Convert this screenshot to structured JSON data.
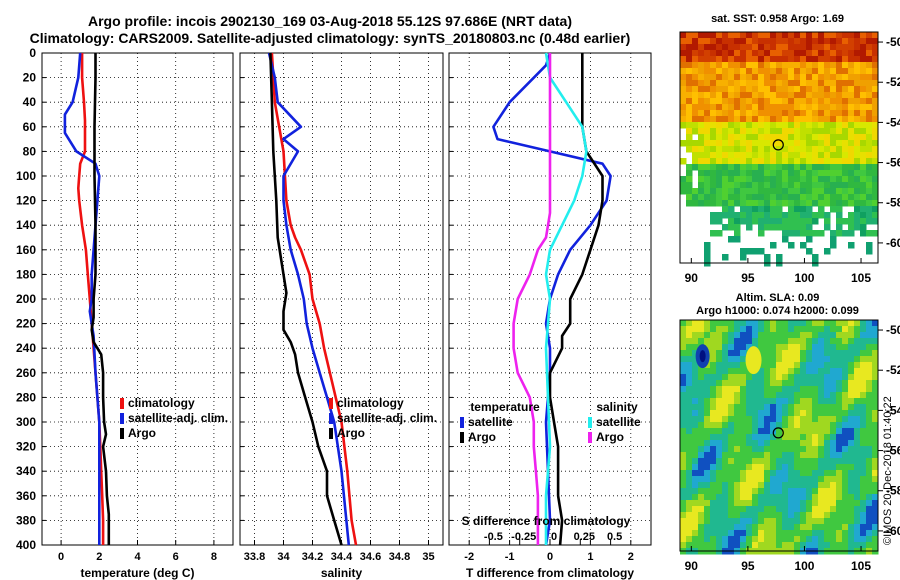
{
  "header": {
    "line1": "Argo profile: incois 2902130_169 03-Aug-2018 55.12S 97.686E (NRT data)",
    "line2": "Climatology: CARS2009. Satellite-adjusted climatology: synTS_20180803.nc (0.48d earlier)"
  },
  "colors": {
    "climatology": "#ee1111",
    "satellite": "#1122dd",
    "argo": "#000000",
    "sat_salinity": "#22eeee",
    "argo_salinity": "#ee22ee"
  },
  "depth_axis": {
    "ticks": [
      "0",
      "20",
      "40",
      "60",
      "80",
      "100",
      "120",
      "140",
      "160",
      "180",
      "200",
      "220",
      "240",
      "260",
      "280",
      "300",
      "320",
      "340",
      "360",
      "380",
      "400"
    ],
    "range": [
      0,
      400
    ]
  },
  "chart_data": [
    {
      "type": "line",
      "name": "temperature",
      "xlabel": "temperature (deg C)",
      "xlim": [
        -1,
        9
      ],
      "xticks": [
        0,
        2,
        4,
        6,
        8
      ],
      "xtick_labels": [
        "0",
        "2",
        "4",
        "6",
        "8"
      ],
      "legend": [
        "climatology",
        "satellite-adj. clim.",
        "Argo"
      ],
      "series": [
        {
          "name": "climatology",
          "color": "#ee1111",
          "x": [
            1.1,
            1.1,
            1.2,
            1.25,
            1.25,
            1.0,
            0.95,
            0.9,
            0.95,
            1.1,
            1.3,
            1.4,
            1.5,
            1.6,
            1.7,
            1.8,
            1.9,
            2.0,
            2.05,
            2.1,
            2.15,
            2.2,
            2.2
          ],
          "y": [
            0,
            20,
            40,
            55,
            80,
            90,
            100,
            110,
            120,
            140,
            160,
            180,
            200,
            220,
            240,
            260,
            280,
            300,
            320,
            340,
            360,
            380,
            400
          ]
        },
        {
          "name": "satellite-adj. clim.",
          "color": "#1122dd",
          "x": [
            1.0,
            0.9,
            0.6,
            0.2,
            0.2,
            0.8,
            1.8,
            2.0,
            1.9,
            1.8,
            1.7,
            1.6,
            1.6,
            1.5,
            1.7,
            1.8,
            1.9,
            2.0,
            2.0,
            2.0,
            2.0,
            2.0,
            2.0,
            2.0
          ],
          "y": [
            0,
            20,
            40,
            50,
            65,
            80,
            90,
            100,
            120,
            140,
            160,
            180,
            200,
            210,
            230,
            260,
            280,
            300,
            320,
            340,
            360,
            380,
            390,
            400
          ]
        },
        {
          "name": "Argo",
          "color": "#000000",
          "x": [
            1.8,
            1.8,
            1.75,
            1.75,
            1.8,
            1.8,
            1.7,
            1.7,
            1.6,
            1.7,
            2.1,
            2.2,
            2.2,
            2.25,
            2.35,
            2.2,
            2.35,
            2.4,
            2.5,
            2.5,
            2.5
          ],
          "y": [
            0,
            20,
            60,
            100,
            140,
            180,
            200,
            215,
            225,
            235,
            245,
            260,
            280,
            300,
            310,
            320,
            340,
            360,
            375,
            385,
            400
          ]
        }
      ]
    },
    {
      "type": "line",
      "name": "salinity",
      "xlabel": "salinity",
      "xlim": [
        33.7,
        35.1
      ],
      "xticks": [
        33.8,
        34,
        34.2,
        34.4,
        34.6,
        34.8,
        35
      ],
      "xtick_labels": [
        "33.8",
        "34",
        "34.2",
        "34.4",
        "34.6",
        "34.8",
        "35"
      ],
      "legend": [
        "climatology",
        "satellite-adj. clim.",
        "Argo"
      ],
      "series": [
        {
          "name": "climatology",
          "color": "#ee1111",
          "x": [
            33.92,
            33.94,
            34.0,
            34.02,
            34.05,
            34.08,
            34.12,
            34.18,
            34.2,
            34.25,
            34.28,
            34.32,
            34.36,
            34.4,
            34.44,
            34.47,
            34.5
          ],
          "y": [
            0,
            40,
            80,
            120,
            140,
            150,
            160,
            180,
            200,
            220,
            240,
            260,
            280,
            300,
            340,
            380,
            400
          ]
        },
        {
          "name": "satellite-adj. clim.",
          "color": "#1122dd",
          "x": [
            33.9,
            33.94,
            33.96,
            34.12,
            34.0,
            34.1,
            34.0,
            34.0,
            34.02,
            34.05,
            34.1,
            34.14,
            34.16,
            34.2,
            34.25,
            34.3,
            34.35,
            34.4,
            34.45
          ],
          "y": [
            0,
            20,
            40,
            60,
            70,
            80,
            100,
            120,
            140,
            160,
            180,
            200,
            220,
            240,
            260,
            280,
            300,
            340,
            400
          ]
        },
        {
          "name": "Argo",
          "color": "#000000",
          "x": [
            33.91,
            33.92,
            33.93,
            33.95,
            33.96,
            33.98,
            34.0,
            34.02,
            34.0,
            34.0,
            34.05,
            34.08,
            34.1,
            34.15,
            34.2,
            34.24,
            34.3,
            34.3,
            34.35,
            34.4
          ],
          "y": [
            0,
            40,
            80,
            120,
            150,
            165,
            180,
            195,
            210,
            225,
            235,
            245,
            260,
            280,
            300,
            320,
            340,
            360,
            380,
            400
          ]
        }
      ]
    },
    {
      "type": "line",
      "name": "difference",
      "xlabel": "T difference from climatology",
      "xlim": [
        -2.5,
        2.5
      ],
      "xticks": [
        -2,
        -1,
        0,
        1,
        2
      ],
      "xtick_labels": [
        "-2",
        "-1",
        "0",
        "1",
        "2"
      ],
      "xlabel2": "S difference from climatology",
      "xtick_labels2": [
        "-0.5",
        "-0.25",
        "0",
        "0.25",
        "0.5"
      ],
      "legend_temperature_heading": "temperature",
      "legend_salinity_heading": "salinity",
      "legend": [
        "satellite",
        "Argo",
        "satellite",
        "Argo"
      ],
      "series": [
        {
          "name": "T satellite",
          "color": "#1122dd",
          "x": [
            0.0,
            -0.1,
            -1.0,
            -1.4,
            -1.3,
            0.0,
            1.3,
            1.5,
            1.4,
            1.0,
            0.5,
            0.2,
            0.0,
            -0.1,
            0.0,
            0.0,
            -0.1,
            -0.05,
            0.0,
            -0.1
          ],
          "y": [
            0,
            10,
            40,
            60,
            70,
            80,
            90,
            100,
            120,
            140,
            160,
            180,
            200,
            220,
            240,
            260,
            300,
            340,
            380,
            400
          ]
        },
        {
          "name": "T Argo",
          "color": "#000000",
          "x": [
            0.8,
            0.8,
            0.8,
            0.9,
            1.3,
            1.3,
            1.2,
            1.0,
            0.8,
            0.5,
            0.5,
            0.3,
            0.3,
            0.0,
            0.0,
            0.1,
            0.2,
            0.2,
            0.3,
            0.25
          ],
          "y": [
            0,
            20,
            60,
            80,
            100,
            120,
            140,
            160,
            180,
            200,
            220,
            230,
            240,
            260,
            280,
            300,
            320,
            360,
            380,
            400
          ]
        },
        {
          "name": "S satellite",
          "color": "#22eeee",
          "x": [
            -0.1,
            0.0,
            0.4,
            0.8,
            0.9,
            0.8,
            0.6,
            0.3,
            0.0,
            -0.1,
            0.0,
            -0.1,
            -0.05,
            0.0,
            -0.1,
            -0.1
          ],
          "y": [
            0,
            20,
            40,
            60,
            80,
            100,
            120,
            140,
            160,
            180,
            200,
            240,
            280,
            320,
            360,
            400
          ]
        },
        {
          "name": "S Argo",
          "color": "#ee22ee",
          "x": [
            0.0,
            0.0,
            0.0,
            0.0,
            0.0,
            -0.1,
            -0.3,
            -0.5,
            -0.8,
            -0.9,
            -0.9,
            -0.8,
            -0.5,
            -0.4,
            -0.4,
            -0.35,
            -0.3,
            -0.3
          ],
          "y": [
            0,
            20,
            60,
            100,
            130,
            150,
            160,
            180,
            200,
            220,
            240,
            260,
            280,
            300,
            320,
            340,
            360,
            400
          ]
        }
      ]
    },
    {
      "type": "heatmap",
      "name": "sst_map",
      "title": "sat. SST: 0.958 Argo: 1.69",
      "xlim": [
        89,
        106.5
      ],
      "ylim": [
        -61,
        -49.5
      ],
      "xticks": [
        90,
        95,
        100,
        105
      ],
      "yticks": [
        -50,
        -52,
        -54,
        -56,
        -58,
        -60
      ],
      "marker": {
        "lon": 97.686,
        "lat": -55.12
      }
    },
    {
      "type": "heatmap",
      "name": "sla_map",
      "title_line1": "Altim. SLA: 0.09",
      "title_line2": "Argo h1000: 0.074 h2000: 0.099",
      "xlim": [
        89,
        106.5
      ],
      "ylim": [
        -61,
        -49.5
      ],
      "xticks": [
        90,
        95,
        100,
        105
      ],
      "yticks": [
        -50,
        -52,
        -54,
        -56,
        -58,
        -60
      ],
      "marker": {
        "lon": 97.686,
        "lat": -55.12
      }
    }
  ],
  "credit": "©IMOS 20-Dec-2018 01:40:22"
}
